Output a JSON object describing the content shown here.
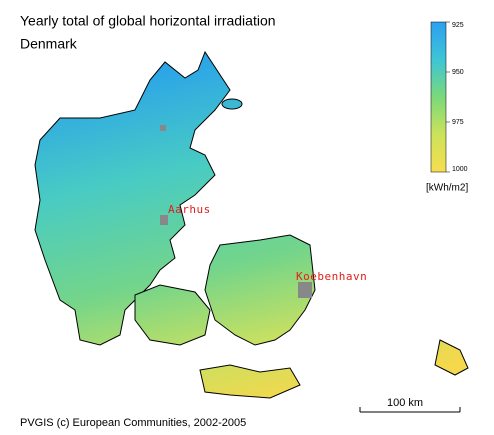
{
  "header": {
    "title": "Yearly total of global horizontal irradiation",
    "subtitle": "Denmark"
  },
  "legend": {
    "range": [
      925,
      1000
    ],
    "ticks": [
      925,
      950,
      975,
      1000
    ],
    "unit": "[kWh/m2]",
    "colors": [
      "#2b9ff0",
      "#3ec5d6",
      "#7ad97a",
      "#cbe35a",
      "#f7dd50"
    ]
  },
  "cities": [
    {
      "name": "Aarhus"
    },
    {
      "name": "Koebenhavn"
    }
  ],
  "scale_bar": "100 km",
  "credit": "PVGIS (c) European Communities, 2002-2005"
}
